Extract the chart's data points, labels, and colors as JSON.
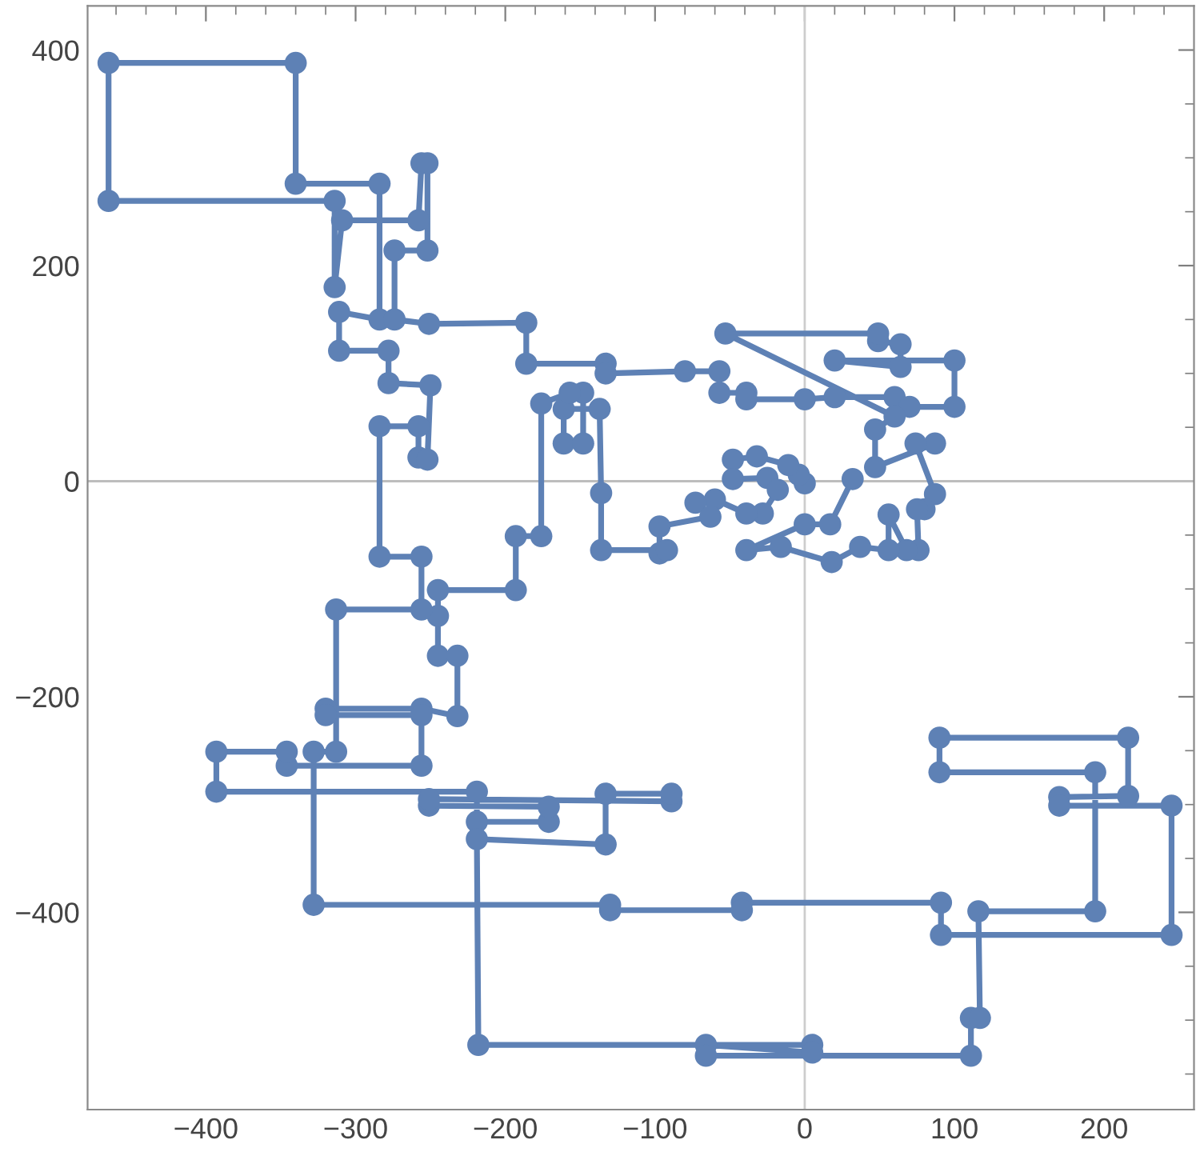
{
  "chart_data": {
    "type": "line",
    "xlim": [
      -479,
      260
    ],
    "ylim": [
      -583,
      441
    ],
    "xticks": [
      {
        "value": -460,
        "label": null
      },
      {
        "value": -440,
        "label": null
      },
      {
        "value": -420,
        "label": null
      },
      -400,
      {
        "value": -380,
        "label": null
      },
      {
        "value": -360,
        "label": null
      },
      {
        "value": -340,
        "label": null
      },
      {
        "value": -320,
        "label": null
      },
      -300,
      {
        "value": -280,
        "label": null
      },
      {
        "value": -260,
        "label": null
      },
      {
        "value": -240,
        "label": null
      },
      {
        "value": -220,
        "label": null
      },
      -200,
      {
        "value": -180,
        "label": null
      },
      {
        "value": -160,
        "label": null
      },
      {
        "value": -140,
        "label": null
      },
      {
        "value": -120,
        "label": null
      },
      -100,
      {
        "value": -80,
        "label": null
      },
      {
        "value": -60,
        "label": null
      },
      {
        "value": -40,
        "label": null
      },
      {
        "value": -20,
        "label": null
      },
      0,
      {
        "value": 20,
        "label": null
      },
      {
        "value": 40,
        "label": null
      },
      {
        "value": 60,
        "label": null
      },
      {
        "value": 80,
        "label": null
      },
      100,
      {
        "value": 120,
        "label": null
      },
      {
        "value": 140,
        "label": null
      },
      {
        "value": 160,
        "label": null
      },
      {
        "value": 180,
        "label": null
      },
      200,
      {
        "value": 220,
        "label": null
      },
      {
        "value": 240,
        "label": null
      }
    ],
    "yticks": [
      {
        "value": -550,
        "label": null
      },
      {
        "value": -500,
        "label": null
      },
      {
        "value": -450,
        "label": null
      },
      -400,
      {
        "value": -350,
        "label": null
      },
      {
        "value": -300,
        "label": null
      },
      {
        "value": -250,
        "label": null
      },
      -200,
      {
        "value": -150,
        "label": null
      },
      {
        "value": -100,
        "label": null
      },
      {
        "value": -50,
        "label": null
      },
      0,
      {
        "value": 50,
        "label": null
      },
      {
        "value": 100,
        "label": null
      },
      {
        "value": 150,
        "label": null
      },
      200,
      {
        "value": 250,
        "label": null
      },
      {
        "value": 300,
        "label": null
      },
      {
        "value": 350,
        "label": null
      },
      400
    ],
    "grid": false,
    "marker": "circle",
    "line_style": "solid",
    "ref_lines": [
      {
        "axis": "x",
        "value": 0,
        "color": "#cdcdcd"
      },
      {
        "axis": "y",
        "value": 0,
        "color": "#bdbdbd"
      }
    ],
    "series": [
      {
        "color": "#5e81b5",
        "x": [
          0,
          -4,
          -11,
          -32,
          -48,
          -48,
          -25,
          -18,
          -28,
          -39,
          -60,
          -73,
          -63,
          -97,
          -97,
          -92,
          -136,
          -136,
          -137,
          -161,
          -161,
          -148,
          -148,
          -157,
          -176,
          -176,
          -193,
          -193,
          -245,
          -245,
          -245,
          -232,
          -232,
          -256,
          -320,
          -320,
          -256,
          -256,
          -346,
          -346,
          -393,
          -393,
          -219,
          -219,
          -171,
          -171,
          -251,
          -251,
          -89,
          -89,
          -133,
          -133,
          -219,
          -218,
          5,
          5,
          -66,
          -66,
          111,
          111,
          117,
          116,
          194,
          194,
          90,
          90,
          216,
          216,
          170,
          170,
          245,
          245,
          91,
          91,
          -42,
          -42,
          -130,
          -130,
          -328,
          -328,
          -313,
          -313,
          -256,
          -256,
          -284,
          -284,
          -258,
          -258,
          -252,
          -250,
          -278,
          -278,
          -311,
          -311,
          -284,
          -284,
          -340,
          -340,
          -465,
          -465,
          -314,
          -314,
          -309,
          -258,
          -256,
          -252,
          -252,
          -274,
          -274,
          -251,
          -186,
          -186,
          -133,
          -133,
          -80,
          -57,
          -57,
          -39,
          -39,
          0,
          20,
          60,
          70,
          100,
          100,
          20,
          64,
          64,
          49,
          49,
          -53,
          60,
          47,
          47,
          87,
          74,
          87,
          80,
          75,
          76,
          68,
          56,
          56,
          37,
          18,
          -16,
          -39,
          0,
          17,
          32
        ],
        "values": [
          -2,
          6,
          15,
          23,
          20,
          2,
          3,
          -8,
          -30,
          -30,
          -17,
          -20,
          -33,
          -42,
          -67,
          -64,
          -64,
          -11,
          67,
          67,
          35,
          35,
          82,
          82,
          72,
          -51,
          -51,
          -101,
          -101,
          -125,
          -162,
          -162,
          -218,
          -211,
          -211,
          -217,
          -217,
          -264,
          -264,
          -251,
          -251,
          -288,
          -288,
          -316,
          -316,
          -302,
          -301,
          -295,
          -297,
          -290,
          -290,
          -337,
          -332,
          -523,
          -523,
          -530,
          -523,
          -533,
          -533,
          -498,
          -498,
          -399,
          -399,
          -270,
          -270,
          -238,
          -238,
          -292,
          -293,
          -301,
          -301,
          -421,
          -421,
          -391,
          -391,
          -398,
          -398,
          -393,
          -393,
          -251,
          -251,
          -119,
          -119,
          -70,
          -70,
          51,
          51,
          22,
          20,
          89,
          91,
          121,
          121,
          157,
          150,
          276,
          276,
          388,
          388,
          260,
          260,
          180,
          242,
          242,
          295,
          295,
          214,
          214,
          150,
          146,
          147,
          109,
          109,
          100,
          102,
          102,
          82,
          82,
          76,
          76,
          78,
          78,
          69,
          69,
          112,
          112,
          106,
          127,
          130,
          137,
          137,
          60,
          48,
          13,
          35,
          35,
          -12,
          -26,
          -26,
          -64,
          -64,
          -31,
          -64,
          -61,
          -75,
          -61,
          -64,
          -40,
          -40,
          2
        ]
      }
    ]
  }
}
